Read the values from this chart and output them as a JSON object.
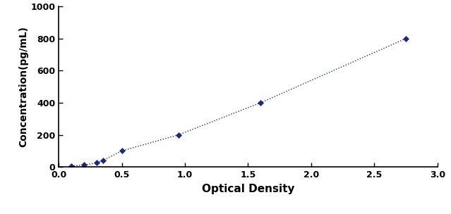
{
  "x": [
    0.1,
    0.2,
    0.3,
    0.35,
    0.5,
    0.95,
    1.6,
    2.75
  ],
  "y": [
    6,
    12,
    25,
    40,
    100,
    200,
    400,
    800
  ],
  "line_color": "#1B2A7B",
  "marker": "D",
  "marker_size": 4,
  "line_style": ":",
  "line_width": 1.0,
  "xlabel": "Optical Density",
  "ylabel": "Concentration(pg/mL)",
  "xlim": [
    0,
    3
  ],
  "ylim": [
    0,
    1000
  ],
  "xticks": [
    0,
    0.5,
    1,
    1.5,
    2,
    2.5,
    3
  ],
  "yticks": [
    0,
    200,
    400,
    600,
    800,
    1000
  ],
  "xlabel_fontsize": 11,
  "ylabel_fontsize": 10,
  "tick_fontsize": 9,
  "background_color": "#FFFFFF",
  "figure_facecolor": "#FFFFFF"
}
